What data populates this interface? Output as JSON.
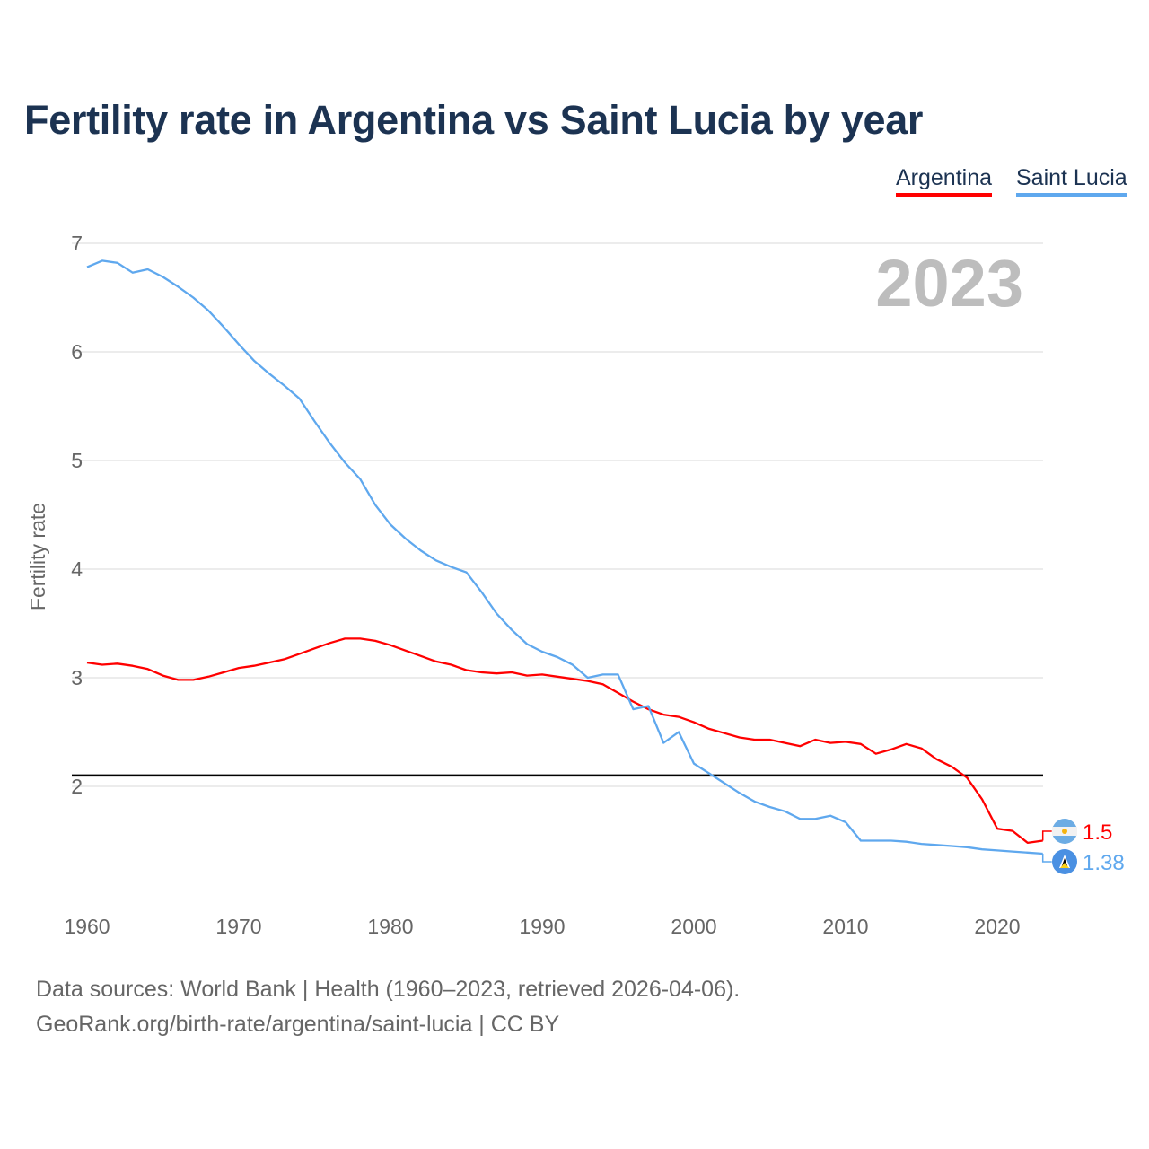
{
  "chart_data": {
    "type": "line",
    "title": "Fertility rate in Argentina vs Saint Lucia by year",
    "xlabel": "",
    "ylabel": "Fertility rate",
    "xlim": [
      1960,
      2023
    ],
    "ylim": [
      1.1,
      7
    ],
    "x_ticks": [
      "1960",
      "1970",
      "1980",
      "1990",
      "2000",
      "2010",
      "2020"
    ],
    "y_ticks": [
      "2",
      "3",
      "4",
      "5",
      "6",
      "7"
    ],
    "grid": true,
    "legend_position": "top-right",
    "year_label": "2023",
    "reference_line": 2.1,
    "x": [
      1960,
      1961,
      1962,
      1963,
      1964,
      1965,
      1966,
      1967,
      1968,
      1969,
      1970,
      1971,
      1972,
      1973,
      1974,
      1975,
      1976,
      1977,
      1978,
      1979,
      1980,
      1981,
      1982,
      1983,
      1984,
      1985,
      1986,
      1987,
      1988,
      1989,
      1990,
      1991,
      1992,
      1993,
      1994,
      1995,
      1996,
      1997,
      1998,
      1999,
      2000,
      2001,
      2002,
      2003,
      2004,
      2005,
      2006,
      2007,
      2008,
      2009,
      2010,
      2011,
      2012,
      2013,
      2014,
      2015,
      2016,
      2017,
      2018,
      2019,
      2020,
      2021,
      2022,
      2023
    ],
    "series": [
      {
        "name": "Argentina",
        "color": "#ff0000",
        "end_label": "1.5",
        "values": [
          3.14,
          3.12,
          3.13,
          3.11,
          3.08,
          3.02,
          2.98,
          2.98,
          3.01,
          3.05,
          3.09,
          3.11,
          3.14,
          3.17,
          3.22,
          3.27,
          3.32,
          3.36,
          3.36,
          3.34,
          3.3,
          3.25,
          3.2,
          3.15,
          3.12,
          3.07,
          3.05,
          3.04,
          3.05,
          3.02,
          3.03,
          3.01,
          2.99,
          2.97,
          2.94,
          2.86,
          2.78,
          2.71,
          2.66,
          2.64,
          2.59,
          2.53,
          2.49,
          2.45,
          2.43,
          2.43,
          2.4,
          2.37,
          2.43,
          2.4,
          2.41,
          2.39,
          2.3,
          2.34,
          2.39,
          2.35,
          2.25,
          2.18,
          2.08,
          1.88,
          1.61,
          1.59,
          1.48,
          1.5
        ]
      },
      {
        "name": "Saint Lucia",
        "color": "#5fa8ee",
        "end_label": "1.38",
        "values": [
          6.78,
          6.84,
          6.82,
          6.73,
          6.76,
          6.69,
          6.6,
          6.5,
          6.38,
          6.23,
          6.07,
          5.92,
          5.8,
          5.69,
          5.57,
          5.36,
          5.16,
          4.98,
          4.83,
          4.59,
          4.41,
          4.28,
          4.17,
          4.08,
          4.02,
          3.97,
          3.79,
          3.59,
          3.44,
          3.31,
          3.24,
          3.19,
          3.12,
          3.0,
          3.03,
          3.03,
          2.71,
          2.74,
          2.4,
          2.5,
          2.21,
          2.12,
          2.03,
          1.94,
          1.86,
          1.81,
          1.77,
          1.7,
          1.7,
          1.73,
          1.67,
          1.5,
          1.5,
          1.5,
          1.49,
          1.47,
          1.46,
          1.45,
          1.44,
          1.42,
          1.41,
          1.4,
          1.39,
          1.38
        ]
      }
    ]
  },
  "footer": {
    "source": "Data sources: World Bank | Health (1960–2023, retrieved 2026-04-06).",
    "credit": "GeoRank.org/birth-rate/argentina/saint-lucia | CC BY"
  }
}
